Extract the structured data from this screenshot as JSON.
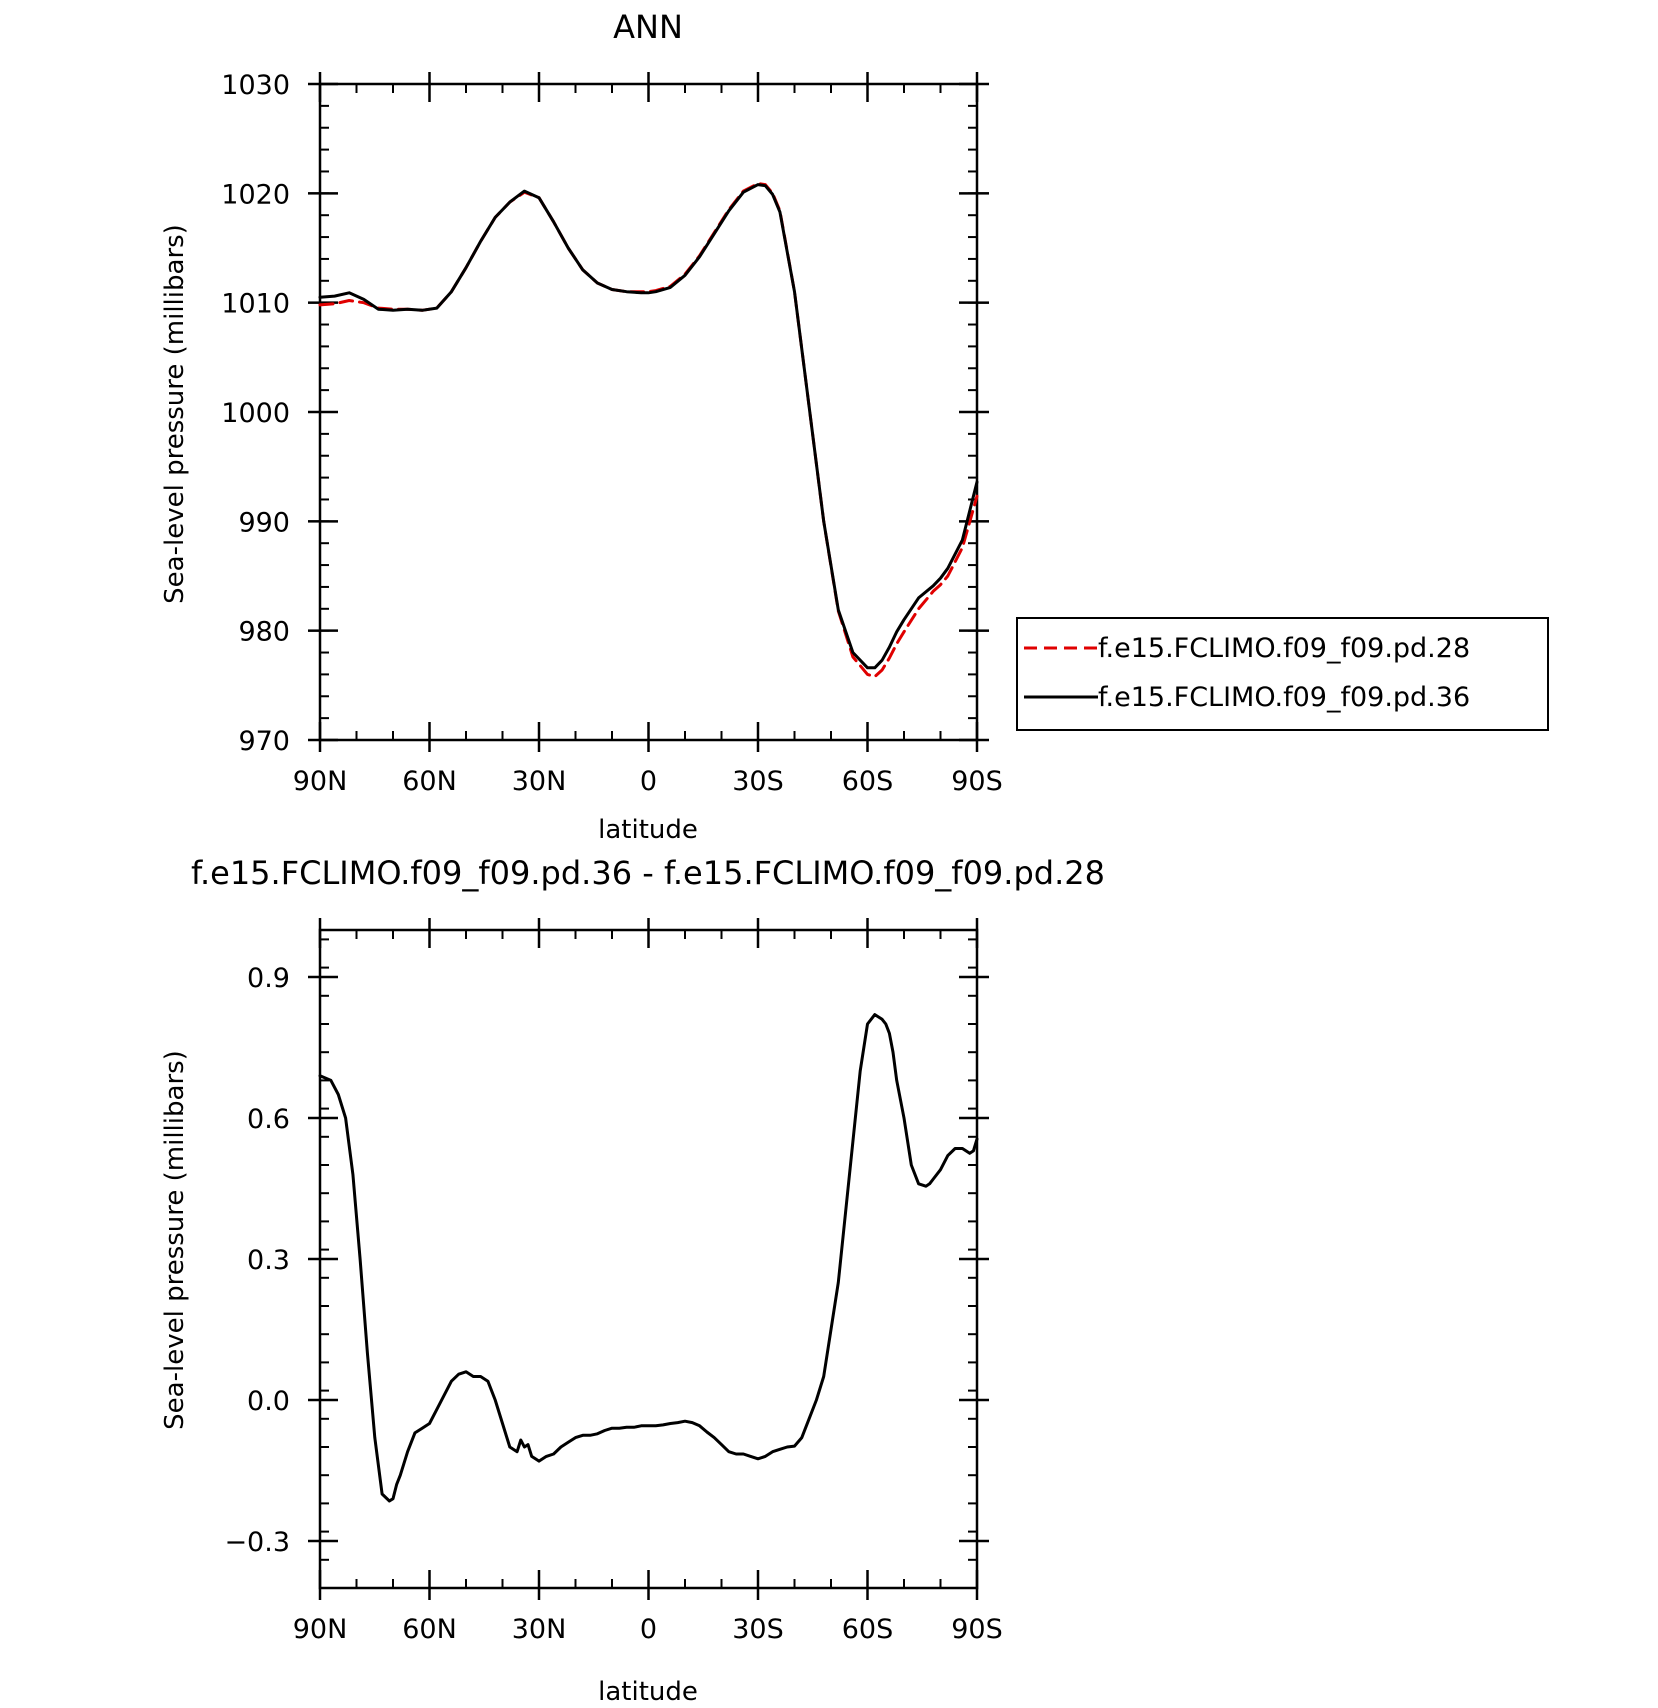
{
  "chart_data": [
    {
      "type": "line",
      "title": "ANN",
      "xlabel": "latitude",
      "ylabel": "Sea-level pressure (millibars)",
      "xlim": [
        90,
        -90
      ],
      "ylim": [
        970,
        1030
      ],
      "xticks": [
        90,
        60,
        30,
        0,
        -30,
        -60,
        -90
      ],
      "xtick_labels": [
        "90N",
        "60N",
        "30N",
        "0",
        "30S",
        "60S",
        "90S"
      ],
      "yticks": [
        970,
        980,
        990,
        1000,
        1010,
        1020,
        1030
      ],
      "ytick_labels": [
        "970",
        "980",
        "990",
        "1000",
        "1010",
        "1020",
        "1030"
      ],
      "legend": "right",
      "series": [
        {
          "name": "f.e15.FCLIMO.f09_f09.pd.28",
          "color": "#e00000",
          "dash": "dashed",
          "x": [
            90,
            86,
            82,
            78,
            74,
            70,
            66,
            62,
            58,
            54,
            50,
            46,
            42,
            38,
            34,
            30,
            26,
            22,
            18,
            14,
            10,
            6,
            2,
            0,
            -2,
            -6,
            -10,
            -14,
            -18,
            -22,
            -26,
            -30,
            -32,
            -34,
            -36,
            -40,
            -44,
            -48,
            -52,
            -56,
            -60,
            -62,
            -64,
            -66,
            -68,
            -70,
            -74,
            -78,
            -80,
            -82,
            -86,
            -90
          ],
          "y": [
            1009.8,
            1009.9,
            1010.2,
            1010.0,
            1009.5,
            1009.4,
            1009.4,
            1009.3,
            1009.5,
            1011.0,
            1013.2,
            1015.6,
            1017.8,
            1019.2,
            1020.1,
            1019.6,
            1017.4,
            1015.0,
            1013.0,
            1011.8,
            1011.2,
            1011.0,
            1011.0,
            1011.0,
            1011.1,
            1011.5,
            1012.6,
            1014.3,
            1016.4,
            1018.5,
            1020.2,
            1020.9,
            1020.8,
            1020.0,
            1018.4,
            1011.0,
            1000.5,
            990.0,
            981.8,
            977.6,
            976.0,
            975.8,
            976.4,
            977.5,
            978.8,
            979.9,
            982.0,
            983.6,
            984.2,
            985.0,
            987.6,
            992.3
          ]
        },
        {
          "name": "f.e15.FCLIMO.f09_f09.pd.36",
          "color": "#000000",
          "dash": "solid",
          "x": [
            90,
            86,
            82,
            78,
            74,
            70,
            66,
            62,
            58,
            54,
            50,
            46,
            42,
            38,
            34,
            30,
            26,
            22,
            18,
            14,
            10,
            6,
            2,
            0,
            -2,
            -6,
            -10,
            -14,
            -18,
            -22,
            -26,
            -30,
            -32,
            -34,
            -36,
            -40,
            -44,
            -48,
            -52,
            -56,
            -60,
            -62,
            -64,
            -66,
            -68,
            -70,
            -74,
            -78,
            -80,
            -82,
            -86,
            -90
          ],
          "y": [
            1010.5,
            1010.6,
            1010.9,
            1010.3,
            1009.4,
            1009.3,
            1009.4,
            1009.3,
            1009.5,
            1011.0,
            1013.2,
            1015.6,
            1017.8,
            1019.2,
            1020.2,
            1019.6,
            1017.4,
            1015.0,
            1013.0,
            1011.8,
            1011.2,
            1011.0,
            1010.9,
            1010.9,
            1011.0,
            1011.4,
            1012.5,
            1014.2,
            1016.3,
            1018.4,
            1020.1,
            1020.8,
            1020.7,
            1019.9,
            1018.3,
            1011.0,
            1000.5,
            990.0,
            981.9,
            978.0,
            976.6,
            976.6,
            977.3,
            978.5,
            979.9,
            981.0,
            983.0,
            984.1,
            984.8,
            985.7,
            988.3,
            993.6
          ]
        }
      ]
    },
    {
      "type": "line",
      "title": "f.e15.FCLIMO.f09_f09.pd.36 - f.e15.FCLIMO.f09_f09.pd.28",
      "xlabel": "latitude",
      "ylabel": "Sea-level pressure (millibars)",
      "xlim": [
        90,
        -90
      ],
      "ylim": [
        -0.4,
        1.0
      ],
      "xticks": [
        90,
        60,
        30,
        0,
        -30,
        -60,
        -90
      ],
      "xtick_labels": [
        "90N",
        "60N",
        "30N",
        "0",
        "30S",
        "60S",
        "90S"
      ],
      "yticks": [
        -0.3,
        0.0,
        0.3,
        0.6,
        0.9
      ],
      "ytick_labels": [
        "−0.3",
        "0.0",
        "0.3",
        "0.6",
        "0.9"
      ],
      "series": [
        {
          "color": "#000000",
          "dash": "solid",
          "x": [
            90,
            87,
            85,
            83,
            81,
            79,
            77,
            75,
            73,
            71,
            70,
            69,
            68,
            66,
            64,
            62,
            60,
            58,
            56,
            54,
            52,
            50,
            48,
            46,
            44,
            42,
            40,
            38,
            36,
            35,
            34,
            33,
            32,
            31,
            30,
            28,
            26,
            24,
            22,
            20,
            18,
            16,
            14,
            12,
            10,
            8,
            6,
            4,
            2,
            0,
            -2,
            -4,
            -6,
            -8,
            -10,
            -12,
            -14,
            -16,
            -18,
            -20,
            -22,
            -24,
            -26,
            -28,
            -30,
            -32,
            -34,
            -36,
            -38,
            -40,
            -42,
            -44,
            -46,
            -48,
            -50,
            -52,
            -54,
            -56,
            -58,
            -60,
            -62,
            -64,
            -65,
            -66,
            -67,
            -68,
            -70,
            -72,
            -74,
            -76,
            -77,
            -78,
            -80,
            -82,
            -84,
            -86,
            -88,
            -89,
            -90
          ],
          "y": [
            0.69,
            0.68,
            0.65,
            0.6,
            0.48,
            0.3,
            0.1,
            -0.08,
            -0.2,
            -0.215,
            -0.21,
            -0.18,
            -0.16,
            -0.11,
            -0.07,
            -0.06,
            -0.05,
            -0.02,
            0.01,
            0.04,
            0.055,
            0.06,
            0.05,
            0.05,
            0.04,
            0.0,
            -0.05,
            -0.1,
            -0.11,
            -0.085,
            -0.1,
            -0.095,
            -0.12,
            -0.125,
            -0.13,
            -0.12,
            -0.115,
            -0.1,
            -0.09,
            -0.08,
            -0.075,
            -0.075,
            -0.072,
            -0.065,
            -0.06,
            -0.06,
            -0.058,
            -0.058,
            -0.055,
            -0.055,
            -0.055,
            -0.053,
            -0.05,
            -0.048,
            -0.045,
            -0.048,
            -0.055,
            -0.068,
            -0.08,
            -0.095,
            -0.11,
            -0.115,
            -0.115,
            -0.12,
            -0.125,
            -0.12,
            -0.11,
            -0.105,
            -0.1,
            -0.098,
            -0.08,
            -0.04,
            0.0,
            0.05,
            0.15,
            0.25,
            0.4,
            0.55,
            0.7,
            0.8,
            0.82,
            0.81,
            0.8,
            0.78,
            0.74,
            0.68,
            0.6,
            0.5,
            0.46,
            0.455,
            0.46,
            0.47,
            0.49,
            0.52,
            0.535,
            0.535,
            0.525,
            0.53,
            0.555
          ]
        }
      ]
    }
  ]
}
